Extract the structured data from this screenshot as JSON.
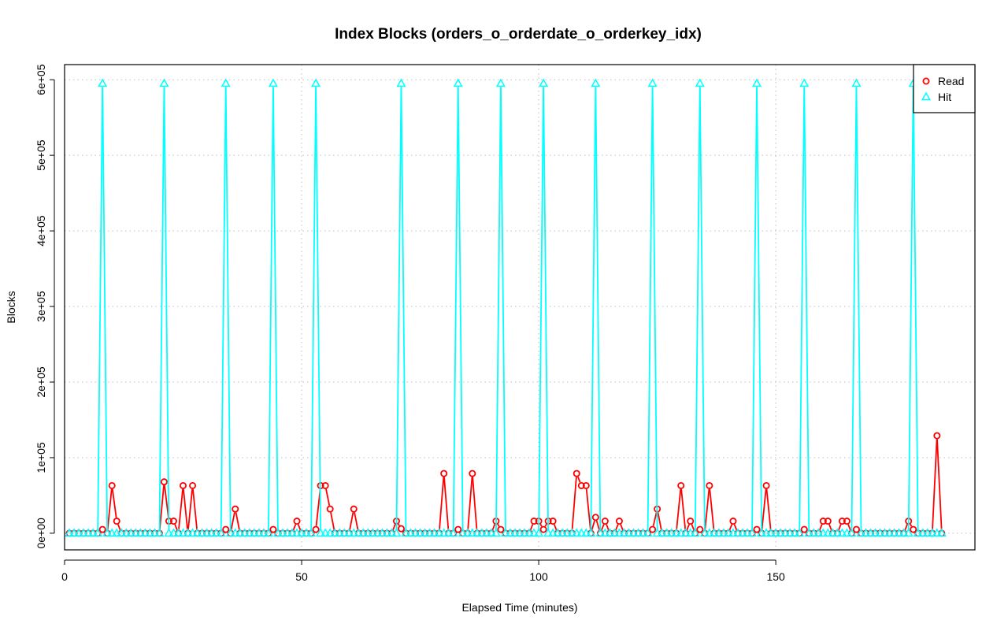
{
  "chart_data": {
    "type": "line",
    "title": "Index Blocks (orders_o_orderdate_o_orderkey_idx)",
    "xlabel": "Elapsed Time (minutes)",
    "ylabel": "Blocks",
    "xlim": [
      0,
      192
    ],
    "ylim": [
      -22000,
      620000
    ],
    "xticks": [
      0,
      50,
      100,
      150
    ],
    "xtick_labels": [
      "0",
      "50",
      "100",
      "150"
    ],
    "yticks": [
      0,
      100000,
      200000,
      300000,
      400000,
      500000,
      600000
    ],
    "ytick_labels": [
      "0e+00",
      "1e+05",
      "2e+05",
      "3e+05",
      "4e+05",
      "5e+05",
      "6e+05"
    ],
    "grid": true,
    "legend_position": "top-right",
    "x_start": 1,
    "x_end": 185,
    "series": [
      {
        "name": "Read",
        "color": "#ff0000",
        "marker": "circle",
        "points": [
          [
            8,
            5000
          ],
          [
            10,
            63000
          ],
          [
            11,
            16000
          ],
          [
            21,
            68000
          ],
          [
            22,
            16000
          ],
          [
            23,
            16000
          ],
          [
            25,
            63000
          ],
          [
            27,
            63000
          ],
          [
            34,
            5000
          ],
          [
            36,
            32000
          ],
          [
            44,
            5000
          ],
          [
            49,
            16000
          ],
          [
            53,
            5000
          ],
          [
            54,
            63000
          ],
          [
            55,
            63000
          ],
          [
            56,
            32000
          ],
          [
            61,
            32000
          ],
          [
            70,
            16000
          ],
          [
            71,
            6000
          ],
          [
            80,
            79000
          ],
          [
            83,
            5000
          ],
          [
            86,
            79000
          ],
          [
            91,
            16000
          ],
          [
            92,
            5000
          ],
          [
            99,
            16000
          ],
          [
            100,
            16000
          ],
          [
            101,
            5000
          ],
          [
            102,
            16000
          ],
          [
            103,
            16000
          ],
          [
            108,
            79000
          ],
          [
            109,
            63000
          ],
          [
            110,
            63000
          ],
          [
            112,
            21000
          ],
          [
            114,
            16000
          ],
          [
            117,
            16000
          ],
          [
            124,
            5000
          ],
          [
            125,
            32000
          ],
          [
            130,
            63000
          ],
          [
            132,
            16000
          ],
          [
            134,
            5000
          ],
          [
            136,
            63000
          ],
          [
            141,
            16000
          ],
          [
            146,
            5000
          ],
          [
            148,
            63000
          ],
          [
            156,
            5000
          ],
          [
            160,
            16000
          ],
          [
            161,
            16000
          ],
          [
            164,
            16000
          ],
          [
            165,
            16000
          ],
          [
            167,
            5000
          ],
          [
            178,
            16000
          ],
          [
            179,
            5000
          ],
          [
            184,
            129000
          ]
        ]
      },
      {
        "name": "Hit",
        "color": "#00ffff",
        "marker": "triangle",
        "points": [
          [
            8,
            595000
          ],
          [
            21,
            595000
          ],
          [
            34,
            595000
          ],
          [
            44,
            595000
          ],
          [
            53,
            595000
          ],
          [
            71,
            595000
          ],
          [
            83,
            595000
          ],
          [
            92,
            595000
          ],
          [
            101,
            595000
          ],
          [
            112,
            595000
          ],
          [
            124,
            595000
          ],
          [
            134,
            595000
          ],
          [
            146,
            595000
          ],
          [
            156,
            595000
          ],
          [
            167,
            595000
          ],
          [
            179,
            595000
          ]
        ]
      }
    ]
  }
}
